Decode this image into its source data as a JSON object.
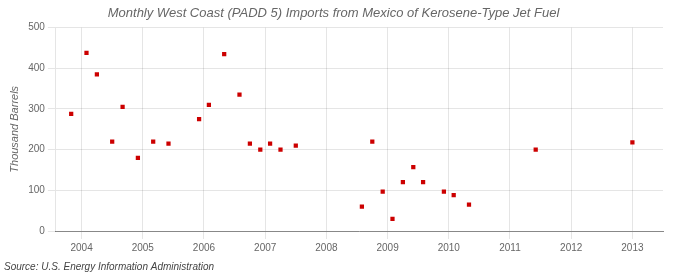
{
  "chart_data": {
    "type": "scatter",
    "title": "Monthly West Coast (PADD 5) Imports from Mexico of Kerosene-Type Jet Fuel",
    "ylabel": "Thousand Barrels",
    "annotations": [
      "Source: U.S. Energy Information Administration"
    ],
    "x": [
      2003.83,
      2004.08,
      2004.25,
      2004.5,
      2004.67,
      2004.92,
      2005.17,
      2005.42,
      2005.92,
      2006.08,
      2006.33,
      2006.58,
      2006.75,
      2006.92,
      2007.08,
      2007.25,
      2007.5,
      2008.58,
      2008.75,
      2008.92,
      2009.08,
      2009.25,
      2009.42,
      2009.58,
      2009.92,
      2010.08,
      2010.33,
      2011.42,
      2013.0
    ],
    "values": [
      288,
      438,
      385,
      220,
      305,
      180,
      220,
      215,
      275,
      310,
      435,
      335,
      215,
      200,
      215,
      200,
      210,
      60,
      220,
      97,
      30,
      120,
      157,
      120,
      97,
      88,
      65,
      200,
      218
    ],
    "color": "#CC0000",
    "marker": "square",
    "xlim": [
      2003.58,
      2013.5
    ],
    "xticks": [
      2004,
      2005,
      2006,
      2007,
      2008,
      2009,
      2010,
      2011,
      2012,
      2013
    ],
    "ylim": [
      0,
      500
    ],
    "yticks": [
      0,
      100,
      200,
      300,
      400,
      500
    ],
    "grid": true
  }
}
